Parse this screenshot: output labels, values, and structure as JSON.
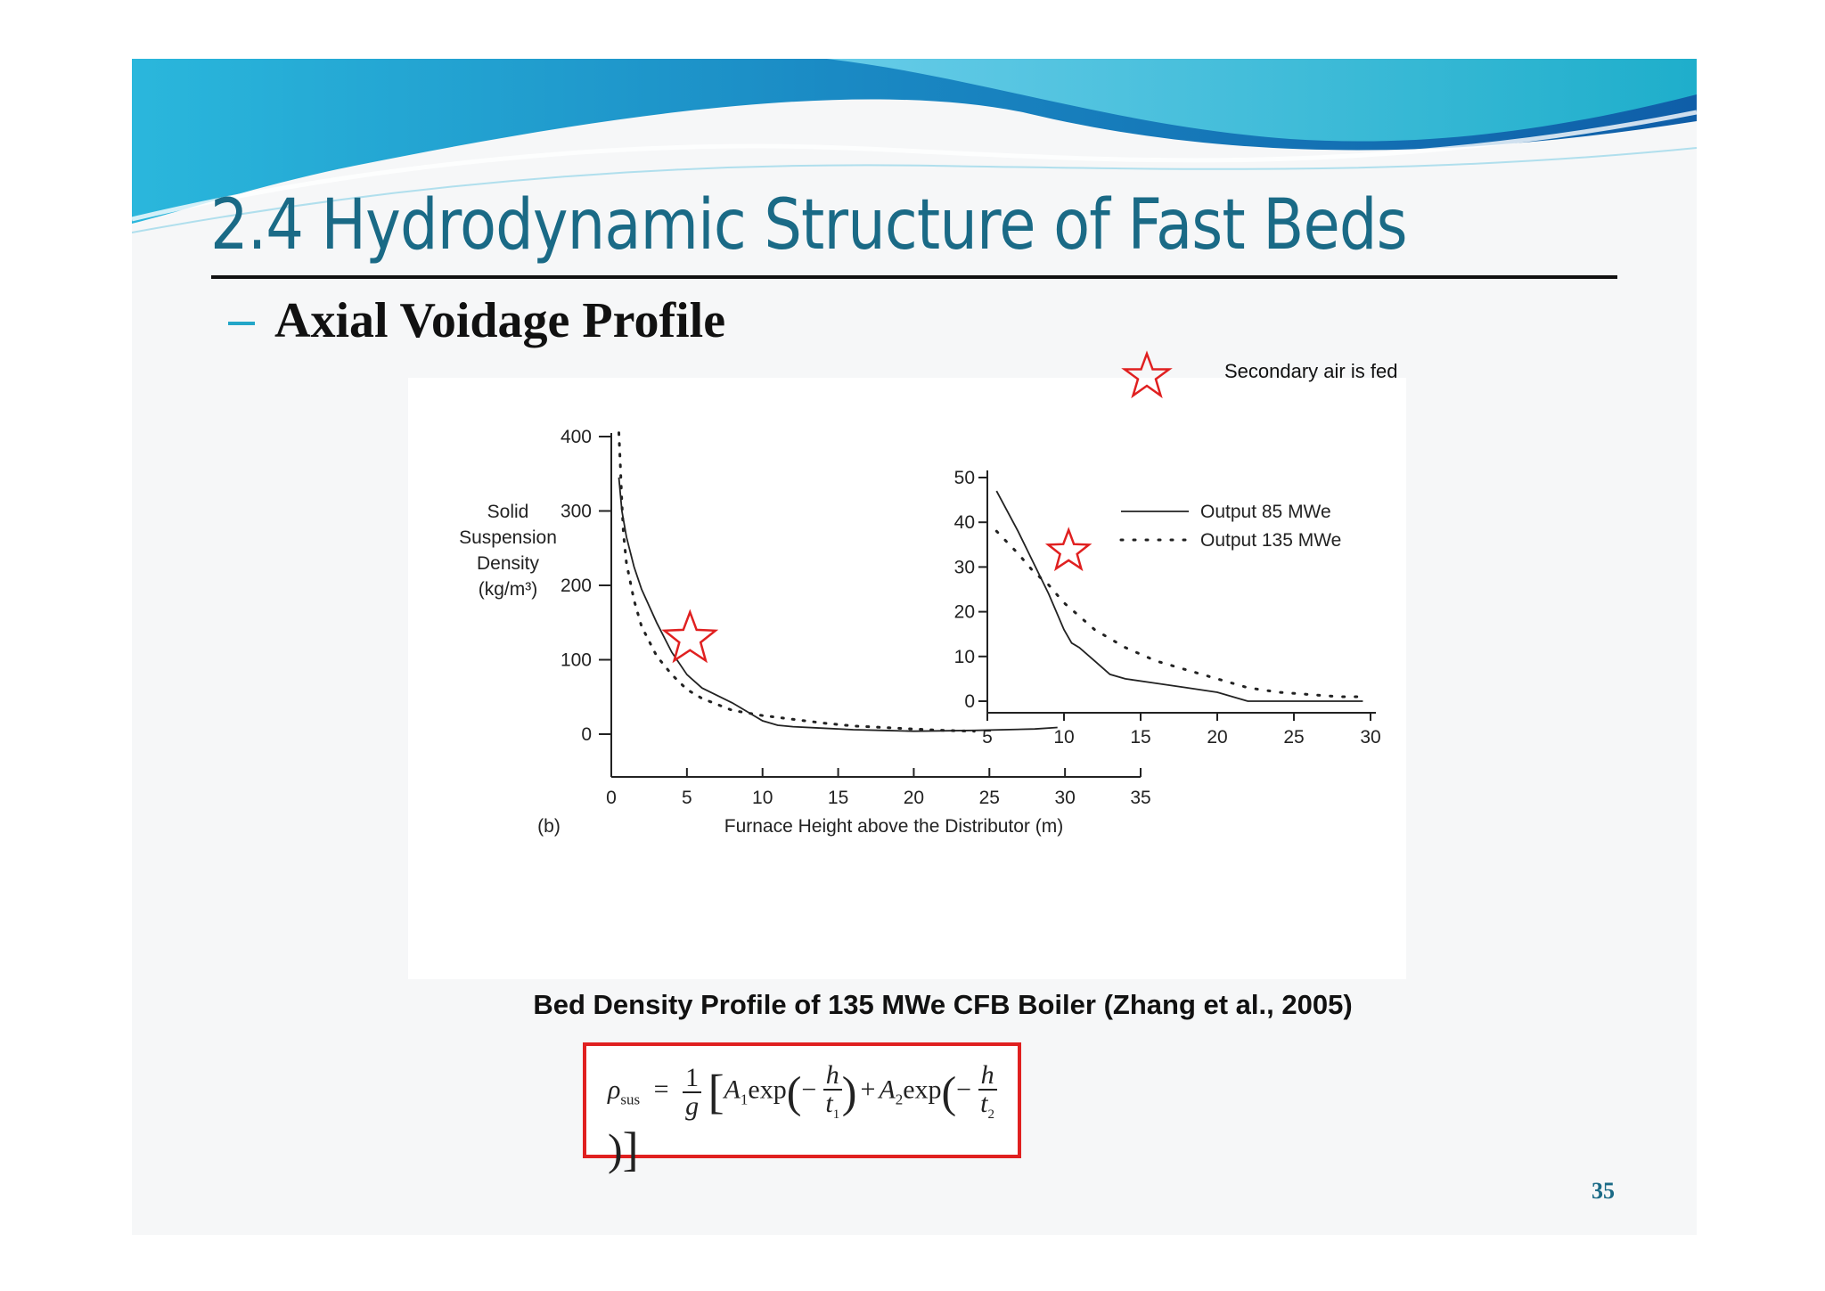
{
  "slide": {
    "title": "2.4 Hydrodynamic Structure of Fast Beds",
    "subtitle": "Axial Voidage Profile",
    "note": "Secondary air is fed",
    "caption": "Bed Density Profile of 135 MWe CFB Boiler (Zhang et al., 2005)",
    "page_number": "35",
    "formula": {
      "lhs": "ρ",
      "lhs_sub": "sus",
      "eq": "=",
      "frac_num": "1",
      "frac_den": "g",
      "open": "[",
      "a1": "A",
      "a1_sub": "1",
      "exp1": "exp",
      "minus1": "−",
      "h1": "h",
      "t1": "t",
      "t1_sub": "1",
      "plus": "+",
      "a2": "A",
      "a2_sub": "2",
      "exp2": "exp",
      "minus2": "−",
      "h2": "h",
      "t2": "t",
      "t2_sub": "2",
      "close": "]"
    },
    "colors": {
      "title": "#1a6a86",
      "accent": "#23a6c8",
      "star": "#e02020",
      "formula_border": "#e02020"
    }
  },
  "chart_data": [
    {
      "type": "line",
      "panel_label": "(b)",
      "ylabel": [
        "Solid",
        "Suspension",
        "Density",
        "(kg/m³)"
      ],
      "xlabel": "Furnace Height above the Distributor (m)",
      "xlim": [
        0,
        35
      ],
      "ylim": [
        0,
        400
      ],
      "xticks": [
        0,
        5,
        10,
        15,
        20,
        25,
        30,
        35
      ],
      "yticks": [
        0,
        100,
        200,
        300,
        400
      ],
      "grid": false,
      "series": [
        {
          "style": "solid",
          "x": [
            0.5,
            0.7,
            1.0,
            1.5,
            2.0,
            3.0,
            4.0,
            5.0,
            6.0,
            7.0,
            8.0,
            9.0,
            10.0,
            11.0,
            12.0,
            14.0,
            16.0,
            18.0,
            20.0,
            24.0,
            28.0,
            29.5
          ],
          "y": [
            345,
            300,
            265,
            225,
            195,
            150,
            110,
            80,
            62,
            52,
            42,
            30,
            18,
            12,
            10,
            8,
            6,
            5,
            4,
            5,
            7,
            9
          ]
        },
        {
          "style": "dotted",
          "x": [
            0.5,
            0.6,
            0.7,
            0.8,
            1.0,
            1.5,
            2.0,
            3.0,
            4.0,
            5.0,
            6.0,
            7.0,
            8.0,
            10.0,
            12.0,
            14.0,
            16.0,
            18.0,
            20.0,
            22.0,
            24.0
          ],
          "y": [
            405,
            360,
            310,
            270,
            230,
            180,
            145,
            105,
            80,
            60,
            48,
            40,
            32,
            25,
            20,
            15,
            11,
            9,
            7,
            5,
            4
          ]
        }
      ]
    },
    {
      "type": "line",
      "title": "",
      "xlim": [
        5,
        30
      ],
      "ylim": [
        0,
        50
      ],
      "xticks": [
        5,
        10,
        15,
        20,
        25,
        30
      ],
      "yticks": [
        0,
        10,
        20,
        30,
        40,
        50
      ],
      "grid": false,
      "legend_position": "top-right",
      "series": [
        {
          "name": "Output 85 MWe",
          "style": "solid",
          "x": [
            5.6,
            7,
            8,
            9,
            10,
            10.5,
            11,
            12,
            13,
            14,
            16,
            18,
            20,
            22,
            25,
            29.5
          ],
          "y": [
            47,
            38,
            31,
            24,
            16,
            13,
            12,
            9,
            6,
            5,
            4,
            3,
            2,
            0,
            0,
            0
          ]
        },
        {
          "name": "Output 135 MWe",
          "style": "dotted",
          "x": [
            5.6,
            7,
            8,
            9,
            10,
            11,
            12,
            14,
            16,
            18,
            20,
            22,
            24,
            26,
            28,
            29.5
          ],
          "y": [
            38,
            33,
            29,
            26,
            22,
            19,
            16,
            12,
            9,
            7,
            5,
            3,
            2,
            1.5,
            1,
            1
          ]
        }
      ]
    }
  ]
}
